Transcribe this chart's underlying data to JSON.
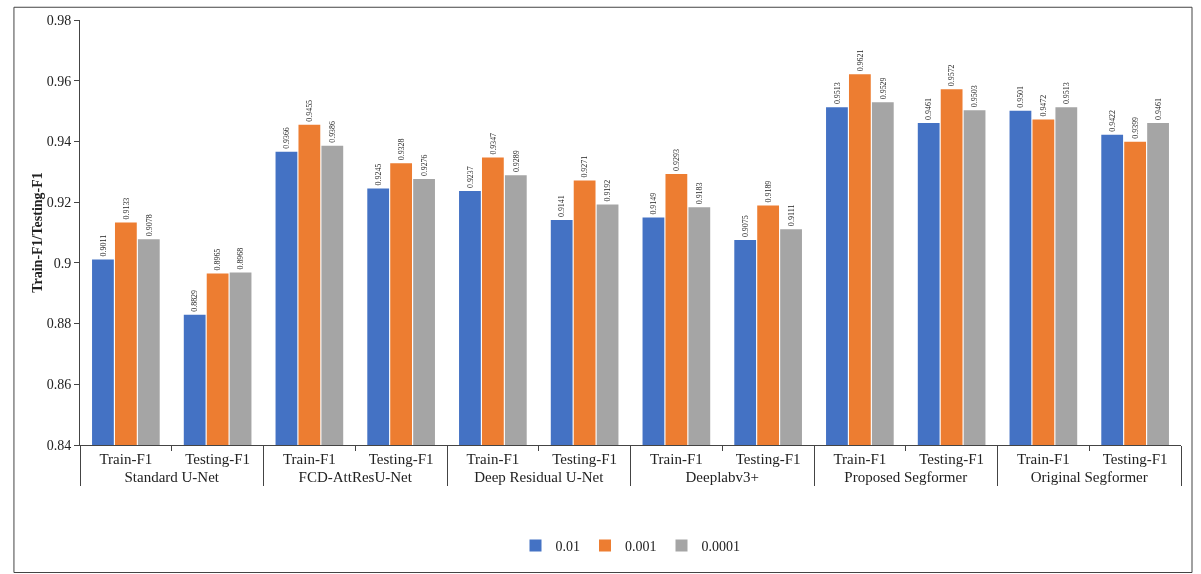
{
  "chart_data": {
    "type": "bar",
    "ylabel": "Train-F1/Testing-F1",
    "categories": [
      "Train-F1",
      "Testing-F1",
      "Train-F1",
      "Testing-F1",
      "Train-F1",
      "Testing-F1",
      "Train-F1",
      "Testing-F1",
      "Train-F1",
      "Testing-F1",
      "Train-F1",
      "Testing-F1"
    ],
    "annotations": [
      "Standard U-Net",
      "FCD-AttResU-Net",
      "Deep Residual U-Net",
      "Deeplabv3+",
      "Proposed Segformer",
      "Original Segformer"
    ],
    "series": [
      {
        "name": "0.01",
        "color": "#4472c4",
        "values": [
          0.9011,
          0.8829,
          0.9366,
          0.9245,
          0.9237,
          0.9141,
          0.9149,
          0.9075,
          0.9513,
          0.9461,
          0.9501,
          0.9422
        ]
      },
      {
        "name": "0.001",
        "color": "#ed7d31",
        "values": [
          0.9133,
          0.8965,
          0.9455,
          0.9328,
          0.9347,
          0.9271,
          0.9293,
          0.9189,
          0.9621,
          0.9572,
          0.9472,
          0.9399
        ]
      },
      {
        "name": "0.0001",
        "color": "#a5a5a5",
        "values": [
          0.9078,
          0.8968,
          0.9386,
          0.9276,
          0.9289,
          0.9192,
          0.9183,
          0.9111,
          0.9529,
          0.9503,
          0.9513,
          0.9461
        ]
      }
    ],
    "ylim": [
      0.84,
      0.98
    ],
    "yticks": [
      0.84,
      0.86,
      0.88,
      0.9,
      0.92,
      0.94,
      0.96,
      0.98
    ],
    "grid": false,
    "legend": "bottom",
    "data_labels": true
  }
}
